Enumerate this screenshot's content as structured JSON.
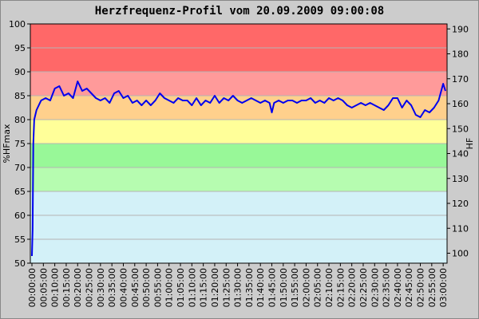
{
  "chart_data": {
    "type": "line",
    "title": "Herzfrequenz-Profil vom 20.09.2009 09:00:08",
    "y_label": "%HFmax",
    "y2_label": "HF",
    "color": "#0000ee",
    "grid": true,
    "x": [
      0,
      0.3,
      0.6,
      1,
      2,
      4,
      6,
      8,
      10,
      12,
      14,
      16,
      18,
      20,
      22,
      24,
      26,
      28,
      30,
      32,
      34,
      36,
      38,
      40,
      42,
      44,
      46,
      48,
      50,
      52,
      54,
      56,
      58,
      60,
      62,
      64,
      66,
      68,
      70,
      72,
      74,
      76,
      78,
      80,
      82,
      84,
      86,
      88,
      90,
      92,
      94,
      96,
      98,
      100,
      102,
      104,
      105,
      106,
      108,
      110,
      112,
      114,
      116,
      118,
      120,
      122,
      124,
      126,
      128,
      130,
      132,
      134,
      136,
      138,
      140,
      142,
      144,
      146,
      148,
      150,
      152,
      154,
      156,
      158,
      160,
      162,
      164,
      166,
      168,
      170,
      172,
      174,
      176,
      178,
      180,
      181
    ],
    "values": [
      51.5,
      57,
      75,
      80,
      82,
      84,
      84.5,
      84,
      86.5,
      87,
      85,
      85.5,
      84.5,
      88,
      86,
      86.5,
      85.5,
      84.5,
      84,
      84.5,
      83.5,
      85.5,
      86,
      84.5,
      85,
      83.5,
      84,
      83,
      84,
      83,
      84,
      85.5,
      84.5,
      84,
      83.5,
      84.5,
      84,
      84,
      83,
      84.5,
      83,
      84,
      83.5,
      85,
      83.5,
      84.5,
      84,
      85,
      84,
      83.5,
      84,
      84.5,
      84,
      83.5,
      84,
      83.5,
      81.5,
      83.5,
      84,
      83.5,
      84,
      84,
      83.5,
      84,
      84,
      84.5,
      83.5,
      84,
      83.5,
      84.5,
      84,
      84.5,
      84,
      83,
      82.5,
      83,
      83.5,
      83,
      83.5,
      83,
      82.5,
      82,
      83,
      84.5,
      84.5,
      82.5,
      84,
      83,
      81,
      80.5,
      82,
      81.5,
      82.5,
      84,
      87.5,
      86
    ],
    "bands": [
      {
        "from": 50,
        "to": 65,
        "color": "#d3f1f8"
      },
      {
        "from": 65,
        "to": 70,
        "color": "#b6fcb0"
      },
      {
        "from": 70,
        "to": 75,
        "color": "#98f898"
      },
      {
        "from": 75,
        "to": 80,
        "color": "#ffff99"
      },
      {
        "from": 80,
        "to": 85,
        "color": "#ffd08c"
      },
      {
        "from": 85,
        "to": 90,
        "color": "#ff9a9a"
      },
      {
        "from": 90,
        "to": 100,
        "color": "#ff6868"
      }
    ],
    "xlim": [
      -0.7,
      181.7
    ],
    "xticks": [
      {
        "value": 0,
        "label": "00:00:00"
      },
      {
        "value": 5,
        "label": "00:05:00"
      },
      {
        "value": 10,
        "label": "00:10:00"
      },
      {
        "value": 15,
        "label": "00:15:00"
      },
      {
        "value": 20,
        "label": "00:20:00"
      },
      {
        "value": 25,
        "label": "00:25:00"
      },
      {
        "value": 30,
        "label": "00:30:00"
      },
      {
        "value": 35,
        "label": "00:35:00"
      },
      {
        "value": 40,
        "label": "00:40:00"
      },
      {
        "value": 45,
        "label": "00:45:00"
      },
      {
        "value": 50,
        "label": "00:50:00"
      },
      {
        "value": 55,
        "label": "00:55:00"
      },
      {
        "value": 60,
        "label": "01:00:00"
      },
      {
        "value": 65,
        "label": "01:05:00"
      },
      {
        "value": 70,
        "label": "01:10:00"
      },
      {
        "value": 75,
        "label": "01:15:00"
      },
      {
        "value": 80,
        "label": "01:20:00"
      },
      {
        "value": 85,
        "label": "01:25:00"
      },
      {
        "value": 90,
        "label": "01:30:00"
      },
      {
        "value": 95,
        "label": "01:35:00"
      },
      {
        "value": 100,
        "label": "01:40:00"
      },
      {
        "value": 105,
        "label": "01:45:00"
      },
      {
        "value": 110,
        "label": "01:50:00"
      },
      {
        "value": 115,
        "label": "01:55:00"
      },
      {
        "value": 120,
        "label": "02:00:00"
      },
      {
        "value": 125,
        "label": "02:05:00"
      },
      {
        "value": 130,
        "label": "02:10:00"
      },
      {
        "value": 135,
        "label": "02:15:00"
      },
      {
        "value": 140,
        "label": "02:20:00"
      },
      {
        "value": 145,
        "label": "02:25:00"
      },
      {
        "value": 150,
        "label": "02:30:00"
      },
      {
        "value": 155,
        "label": "02:35:00"
      },
      {
        "value": 160,
        "label": "02:40:00"
      },
      {
        "value": 165,
        "label": "02:45:00"
      },
      {
        "value": 170,
        "label": "02:50:00"
      },
      {
        "value": 175,
        "label": "02:55:00"
      },
      {
        "value": 180,
        "label": "03:00:00"
      }
    ],
    "ylim": [
      50,
      100
    ],
    "yticks": [
      50,
      55,
      60,
      65,
      70,
      75,
      80,
      85,
      90,
      95,
      100
    ],
    "y2lim": [
      96,
      192
    ],
    "y2ticks": [
      100,
      110,
      120,
      130,
      140,
      150,
      160,
      170,
      180,
      190
    ]
  }
}
